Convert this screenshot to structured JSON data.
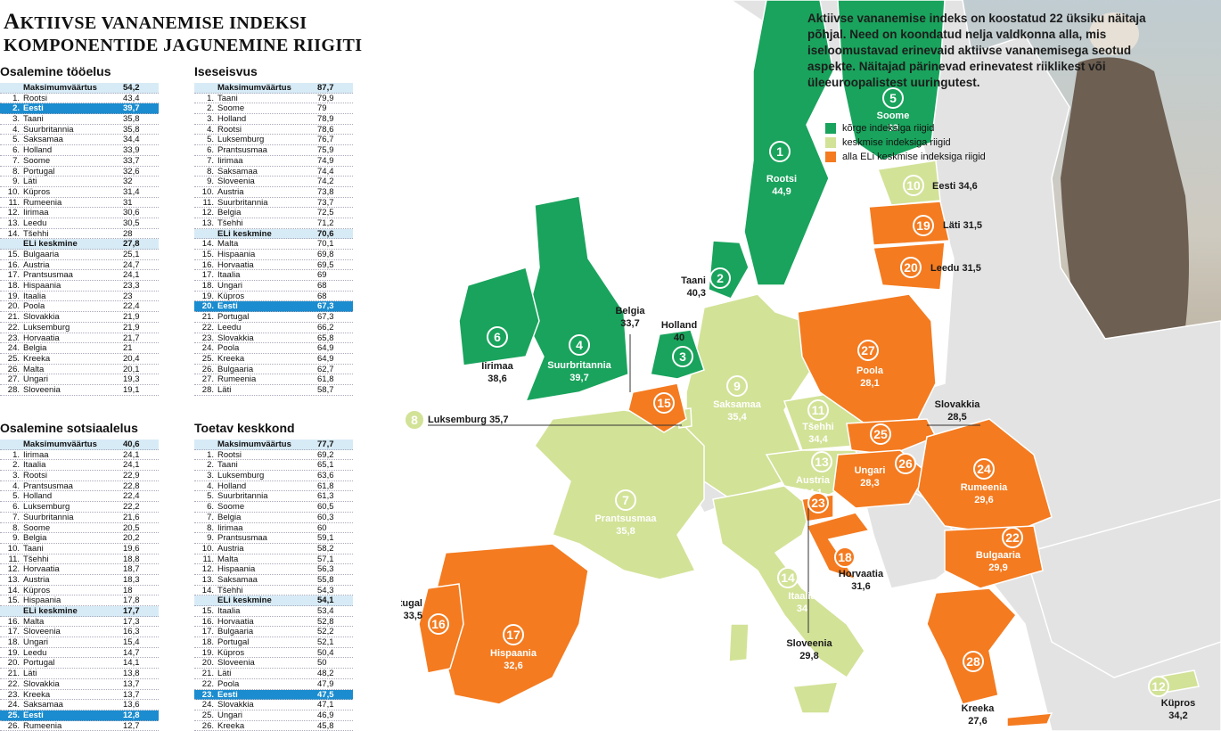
{
  "title_first_letter": "A",
  "title_rest": "KTIIVSE VANANEMISE INDEKSI",
  "title_line2": "KOMPONENTIDE JAGUNEMINE RIIGITI",
  "intro": "Aktiivse vananemise indeks on koostatud 22 üksiku näitaja põhjal. Need on koondatud nelja valdkonna alla, mis iseloomustavad erinevaid aktiivse vananemisega seotud aspekte. Näitajad pärinevad erinevatest riiklikest või üleeuroopalistest uuringutest.",
  "colors": {
    "high": "#19a35c",
    "medium": "#d2e297",
    "low": "#f47b20",
    "highlight": "#1a8ccf",
    "header_bg": "#d7ebf6"
  },
  "legend": [
    {
      "label": "kõrge indeksiga riigid",
      "color": "#19a35c"
    },
    {
      "label": "keskmise indeksiga riigid",
      "color": "#d2e297"
    },
    {
      "label": "alla ELi keskmise indeksiga riigid",
      "color": "#f47b20"
    }
  ],
  "tables": [
    {
      "title": "Osalemine tööelus",
      "rows": [
        {
          "num": "",
          "name": "Maksimumväärtus",
          "val": "54,2",
          "type": "head"
        },
        {
          "num": "1.",
          "name": "Rootsi",
          "val": "43,4"
        },
        {
          "num": "2.",
          "name": "Eesti",
          "val": "39,7",
          "type": "hl"
        },
        {
          "num": "3.",
          "name": "Taani",
          "val": "35,8"
        },
        {
          "num": "4.",
          "name": "Suurbritannia",
          "val": "35,8"
        },
        {
          "num": "5.",
          "name": "Saksamaa",
          "val": "34,4"
        },
        {
          "num": "6.",
          "name": "Holland",
          "val": "33,9"
        },
        {
          "num": "7.",
          "name": "Soome",
          "val": "33,7"
        },
        {
          "num": "8.",
          "name": "Portugal",
          "val": "32,6"
        },
        {
          "num": "9.",
          "name": "Läti",
          "val": "32"
        },
        {
          "num": "10.",
          "name": "Küpros",
          "val": "31,4"
        },
        {
          "num": "11.",
          "name": "Rumeenia",
          "val": "31"
        },
        {
          "num": "12.",
          "name": "Iirimaa",
          "val": "30,6"
        },
        {
          "num": "13.",
          "name": "Leedu",
          "val": "30,5"
        },
        {
          "num": "14.",
          "name": "Tšehhi",
          "val": "28"
        },
        {
          "num": "",
          "name": "ELi keskmine",
          "val": "27,8",
          "type": "avg"
        },
        {
          "num": "15.",
          "name": "Bulgaaria",
          "val": "25,1"
        },
        {
          "num": "16.",
          "name": "Austria",
          "val": "24,7"
        },
        {
          "num": "17.",
          "name": "Prantsusmaa",
          "val": "24,1"
        },
        {
          "num": "18.",
          "name": "Hispaania",
          "val": "23,3"
        },
        {
          "num": "19.",
          "name": "Itaalia",
          "val": "23"
        },
        {
          "num": "20.",
          "name": "Poola",
          "val": "22,4"
        },
        {
          "num": "21.",
          "name": "Slovakkia",
          "val": "21,9"
        },
        {
          "num": "22.",
          "name": "Luksemburg",
          "val": "21,9"
        },
        {
          "num": "23.",
          "name": "Horvaatia",
          "val": "21,7"
        },
        {
          "num": "24.",
          "name": "Belgia",
          "val": "21"
        },
        {
          "num": "25.",
          "name": "Kreeka",
          "val": "20,4"
        },
        {
          "num": "26.",
          "name": "Malta",
          "val": "20,1"
        },
        {
          "num": "27.",
          "name": "Ungari",
          "val": "19,3"
        },
        {
          "num": "28.",
          "name": "Sloveenia",
          "val": "19,1"
        }
      ]
    },
    {
      "title": "Iseseisvus",
      "rows": [
        {
          "num": "",
          "name": "Maksimumväärtus",
          "val": "87,7",
          "type": "head"
        },
        {
          "num": "1.",
          "name": "Taani",
          "val": "79,9"
        },
        {
          "num": "2.",
          "name": "Soome",
          "val": "79"
        },
        {
          "num": "3.",
          "name": "Holland",
          "val": "78,9"
        },
        {
          "num": "4.",
          "name": "Rootsi",
          "val": "78,6"
        },
        {
          "num": "5.",
          "name": "Luksemburg",
          "val": "76,7"
        },
        {
          "num": "6.",
          "name": "Prantsusmaa",
          "val": "75,9"
        },
        {
          "num": "7.",
          "name": "Iirimaa",
          "val": "74,9"
        },
        {
          "num": "8.",
          "name": "Saksamaa",
          "val": "74,4"
        },
        {
          "num": "9.",
          "name": "Sloveenia",
          "val": "74,2"
        },
        {
          "num": "10.",
          "name": "Austria",
          "val": "73,8"
        },
        {
          "num": "11.",
          "name": "Suurbritannia",
          "val": "73,7"
        },
        {
          "num": "12.",
          "name": "Belgia",
          "val": "72,5"
        },
        {
          "num": "13.",
          "name": "Tšehhi",
          "val": "71,2"
        },
        {
          "num": "",
          "name": "ELi keskmine",
          "val": "70,6",
          "type": "avg"
        },
        {
          "num": "14.",
          "name": "Malta",
          "val": "70,1"
        },
        {
          "num": "15.",
          "name": "Hispaania",
          "val": "69,8"
        },
        {
          "num": "16.",
          "name": "Horvaatia",
          "val": "69,5"
        },
        {
          "num": "17.",
          "name": "Itaalia",
          "val": "69"
        },
        {
          "num": "18.",
          "name": "Ungari",
          "val": "68"
        },
        {
          "num": "19.",
          "name": "Küpros",
          "val": "68"
        },
        {
          "num": "20.",
          "name": "Eesti",
          "val": "67,3",
          "type": "hl"
        },
        {
          "num": "21.",
          "name": "Portugal",
          "val": "67,3"
        },
        {
          "num": "22.",
          "name": "Leedu",
          "val": "66,2"
        },
        {
          "num": "23.",
          "name": "Slovakkia",
          "val": "65,8"
        },
        {
          "num": "24.",
          "name": "Poola",
          "val": "64,9"
        },
        {
          "num": "25.",
          "name": "Kreeka",
          "val": "64,9"
        },
        {
          "num": "26.",
          "name": "Bulgaaria",
          "val": "62,7"
        },
        {
          "num": "27.",
          "name": "Rumeenia",
          "val": "61,8"
        },
        {
          "num": "28.",
          "name": "Läti",
          "val": "58,7"
        }
      ]
    },
    {
      "title": "Osalemine sotsiaalelus",
      "rows": [
        {
          "num": "",
          "name": "Maksimumväärtus",
          "val": "40,6",
          "type": "head"
        },
        {
          "num": "1.",
          "name": "Iirimaa",
          "val": "24,1"
        },
        {
          "num": "2.",
          "name": "Itaalia",
          "val": "24,1"
        },
        {
          "num": "3.",
          "name": "Rootsi",
          "val": "22,9"
        },
        {
          "num": "4.",
          "name": "Prantsusmaa",
          "val": "22,8"
        },
        {
          "num": "5.",
          "name": "Holland",
          "val": "22,4"
        },
        {
          "num": "6.",
          "name": "Luksemburg",
          "val": "22,2"
        },
        {
          "num": "7.",
          "name": "Suurbritannia",
          "val": "21,6"
        },
        {
          "num": "8.",
          "name": "Soome",
          "val": "20,5"
        },
        {
          "num": "9.",
          "name": "Belgia",
          "val": "20,2"
        },
        {
          "num": "10.",
          "name": "Taani",
          "val": "19,6"
        },
        {
          "num": "11.",
          "name": "Tšehhi",
          "val": "18,8"
        },
        {
          "num": "12.",
          "name": "Horvaatia",
          "val": "18,7"
        },
        {
          "num": "13.",
          "name": "Austria",
          "val": "18,3"
        },
        {
          "num": "14.",
          "name": "Küpros",
          "val": "18"
        },
        {
          "num": "15.",
          "name": "Hispaania",
          "val": "17,8"
        },
        {
          "num": "",
          "name": "ELi keskmine",
          "val": "17,7",
          "type": "avg"
        },
        {
          "num": "16.",
          "name": "Malta",
          "val": "17,3"
        },
        {
          "num": "17.",
          "name": "Sloveenia",
          "val": "16,3"
        },
        {
          "num": "18.",
          "name": "Ungari",
          "val": "15,4"
        },
        {
          "num": "19.",
          "name": "Leedu",
          "val": "14,7"
        },
        {
          "num": "20.",
          "name": "Portugal",
          "val": "14,1"
        },
        {
          "num": "21.",
          "name": "Läti",
          "val": "13,8"
        },
        {
          "num": "22.",
          "name": "Slovakkia",
          "val": "13,7"
        },
        {
          "num": "23.",
          "name": "Kreeka",
          "val": "13,7"
        },
        {
          "num": "24.",
          "name": "Saksamaa",
          "val": "13,6"
        },
        {
          "num": "25.",
          "name": "Eesti",
          "val": "12,8",
          "type": "hl"
        },
        {
          "num": "26.",
          "name": "Rumeenia",
          "val": "12,7"
        }
      ]
    },
    {
      "title": "Toetav keskkond",
      "rows": [
        {
          "num": "",
          "name": "Maksimumväärtus",
          "val": "77,7",
          "type": "head"
        },
        {
          "num": "1.",
          "name": "Rootsi",
          "val": "69,2"
        },
        {
          "num": "2.",
          "name": "Taani",
          "val": "65,1"
        },
        {
          "num": "3.",
          "name": "Luksemburg",
          "val": "63,6"
        },
        {
          "num": "4.",
          "name": "Holland",
          "val": "61,8"
        },
        {
          "num": "5.",
          "name": "Suurbritannia",
          "val": "61,3"
        },
        {
          "num": "6.",
          "name": "Soome",
          "val": "60,5"
        },
        {
          "num": "7.",
          "name": "Belgia",
          "val": "60,3"
        },
        {
          "num": "8.",
          "name": "Iirimaa",
          "val": "60"
        },
        {
          "num": "9.",
          "name": "Prantsusmaa",
          "val": "59,1"
        },
        {
          "num": "10.",
          "name": "Austria",
          "val": "58,2"
        },
        {
          "num": "11.",
          "name": "Malta",
          "val": "57,1"
        },
        {
          "num": "12.",
          "name": "Hispaania",
          "val": "56,3"
        },
        {
          "num": "13.",
          "name": "Saksamaa",
          "val": "55,8"
        },
        {
          "num": "14.",
          "name": "Tšehhi",
          "val": "54,3"
        },
        {
          "num": "",
          "name": "ELi keskmine",
          "val": "54,1",
          "type": "avg"
        },
        {
          "num": "15.",
          "name": "Itaalia",
          "val": "53,4"
        },
        {
          "num": "16.",
          "name": "Horvaatia",
          "val": "52,8"
        },
        {
          "num": "17.",
          "name": "Bulgaaria",
          "val": "52,2"
        },
        {
          "num": "18.",
          "name": "Portugal",
          "val": "52,1"
        },
        {
          "num": "19.",
          "name": "Küpros",
          "val": "50,4"
        },
        {
          "num": "20.",
          "name": "Sloveenia",
          "val": "50"
        },
        {
          "num": "21.",
          "name": "Läti",
          "val": "48,2"
        },
        {
          "num": "22.",
          "name": "Poola",
          "val": "47,9"
        },
        {
          "num": "23.",
          "name": "Eesti",
          "val": "47,5",
          "type": "hl"
        },
        {
          "num": "24.",
          "name": "Slovakkia",
          "val": "47,1"
        },
        {
          "num": "25.",
          "name": "Ungari",
          "val": "46,9"
        },
        {
          "num": "26.",
          "name": "Kreeka",
          "val": "45,8"
        }
      ]
    }
  ],
  "map_markers": [
    {
      "n": "1",
      "name": "Rootsi",
      "score": "44,9",
      "group": "high"
    },
    {
      "n": "2",
      "name": "Taani",
      "score": "40,3",
      "group": "high"
    },
    {
      "n": "3",
      "name": "Holland",
      "score": "40",
      "group": "high"
    },
    {
      "n": "4",
      "name": "Suurbritannia",
      "score": "39,7",
      "group": "high"
    },
    {
      "n": "5",
      "name": "Soome",
      "score": "39",
      "group": "high"
    },
    {
      "n": "6",
      "name": "Iirimaa",
      "score": "38,6",
      "group": "high"
    },
    {
      "n": "7",
      "name": "Prantsusmaa",
      "score": "35,8",
      "group": "medium"
    },
    {
      "n": "8",
      "name": "Luksemburg",
      "score": "35,7",
      "group": "medium"
    },
    {
      "n": "9",
      "name": "Saksamaa",
      "score": "35,4",
      "group": "medium"
    },
    {
      "n": "10",
      "name": "Eesti",
      "score": "34,6",
      "group": "medium"
    },
    {
      "n": "11",
      "name": "Tšehhi",
      "score": "34,4",
      "group": "medium"
    },
    {
      "n": "12",
      "name": "Küpros",
      "score": "34,2",
      "group": "medium"
    },
    {
      "n": "13",
      "name": "Austria",
      "score": "34,1",
      "group": "medium"
    },
    {
      "n": "14",
      "name": "Itaalia",
      "score": "34",
      "group": "medium"
    },
    {
      "n": "15",
      "name": "Belgia",
      "score": "33,7",
      "group": "low"
    },
    {
      "n": "16",
      "name": "Portugal",
      "score": "33,5",
      "group": "low"
    },
    {
      "n": "17",
      "name": "Hispaania",
      "score": "32,6",
      "group": "low"
    },
    {
      "n": "18",
      "name": "Horvaatia",
      "score": "31,6",
      "group": "low"
    },
    {
      "n": "19",
      "name": "Läti",
      "score": "31,5",
      "group": "low"
    },
    {
      "n": "20",
      "name": "Leedu",
      "score": "31,5",
      "group": "low"
    },
    {
      "n": "22",
      "name": "Bulgaaria",
      "score": "29,9",
      "group": "low"
    },
    {
      "n": "23",
      "name": "Sloveenia",
      "score": "29,8",
      "group": "low"
    },
    {
      "n": "24",
      "name": "Rumeenia",
      "score": "29,6",
      "group": "low"
    },
    {
      "n": "25",
      "name": "Slovakkia",
      "score": "28,5",
      "group": "low"
    },
    {
      "n": "26",
      "name": "Ungari",
      "score": "28,3",
      "group": "low"
    },
    {
      "n": "27",
      "name": "Poola",
      "score": "28,1",
      "group": "low"
    },
    {
      "n": "28",
      "name": "Kreeka",
      "score": "27,6",
      "group": "low"
    }
  ]
}
